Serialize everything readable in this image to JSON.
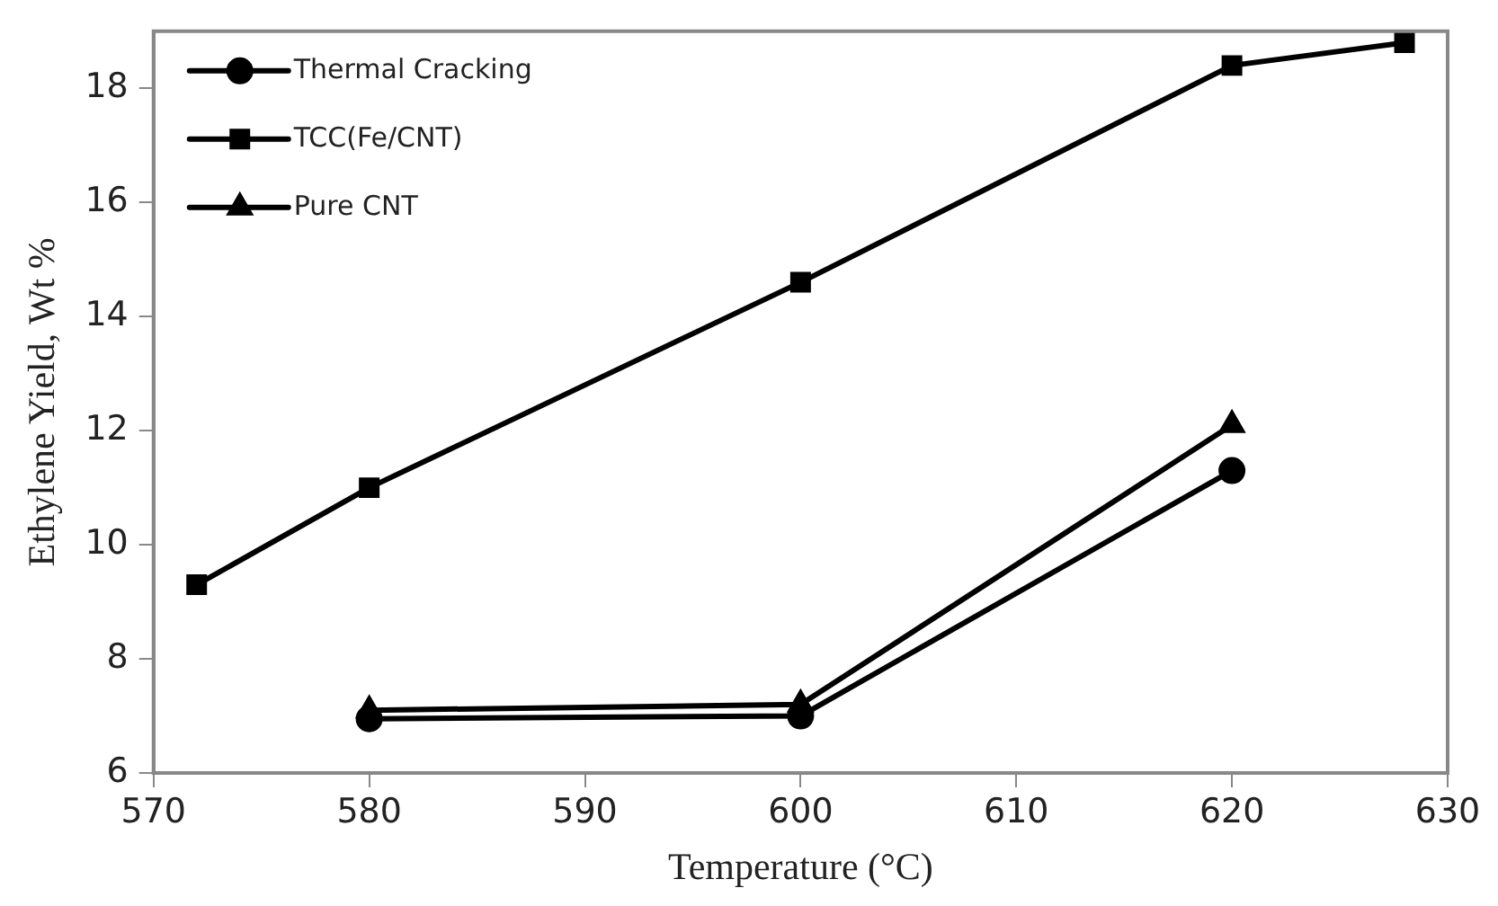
{
  "chart_data": {
    "type": "line",
    "xlabel": "Temperature (°C)",
    "ylabel": "Ethylene Yield, Wt %",
    "xlim": [
      570,
      630
    ],
    "xticks": [
      570,
      580,
      590,
      600,
      610,
      620,
      630
    ],
    "ylim": [
      6,
      19
    ],
    "yticks": [
      6,
      8,
      10,
      12,
      14,
      16,
      18
    ],
    "grid": false,
    "legend": "top left",
    "line_style": "solid",
    "series": [
      {
        "name": "Thermal Cracking",
        "color": "#000000",
        "marker": "circle",
        "x": [
          580,
          600,
          620
        ],
        "values": [
          6.95,
          7.0,
          11.3
        ]
      },
      {
        "name": "TCC(Fe/CNT)",
        "color": "#000000",
        "marker": "square",
        "x": [
          572,
          580,
          600,
          620,
          628
        ],
        "values": [
          9.3,
          11.0,
          14.6,
          18.4,
          18.8
        ]
      },
      {
        "name": "Pure CNT",
        "color": "#000000",
        "marker": "triangle",
        "x": [
          580,
          600,
          620
        ],
        "values": [
          7.1,
          7.2,
          12.1
        ]
      }
    ]
  }
}
